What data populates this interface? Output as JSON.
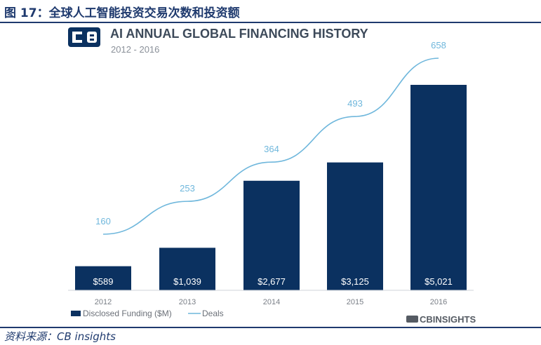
{
  "figure": {
    "title": "图 17：全球人工智能投资交易次数和投资额",
    "source": "资料来源：CB insights"
  },
  "colors": {
    "bar": "#0b3160",
    "line": "#6fb7dc",
    "rule": "#1f3a6e"
  },
  "chart_data": {
    "type": "bar",
    "title": "AI ANNUAL GLOBAL FINANCING HISTORY",
    "subtitle": "2012 - 2016",
    "categories": [
      "2012",
      "2013",
      "2014",
      "2015",
      "2016"
    ],
    "series": [
      {
        "name": "Disclosed Funding ($M)",
        "type": "bar",
        "values": [
          589,
          1039,
          2677,
          3125,
          5021
        ],
        "labels": [
          "$589",
          "$1,039",
          "$2,677",
          "$3,125",
          "$5,021"
        ]
      },
      {
        "name": "Deals",
        "type": "line",
        "values": [
          160,
          253,
          364,
          493,
          658
        ],
        "labels": [
          "160",
          "253",
          "364",
          "493",
          "658"
        ]
      }
    ],
    "ylim_funding": [
      0,
      5500
    ],
    "ylim_deals": [
      0,
      700
    ],
    "legend": [
      "Disclosed Funding ($M)",
      "Deals"
    ],
    "legend_position": "bottom-left",
    "brand": "CBINSIGHTS",
    "grid": false
  }
}
